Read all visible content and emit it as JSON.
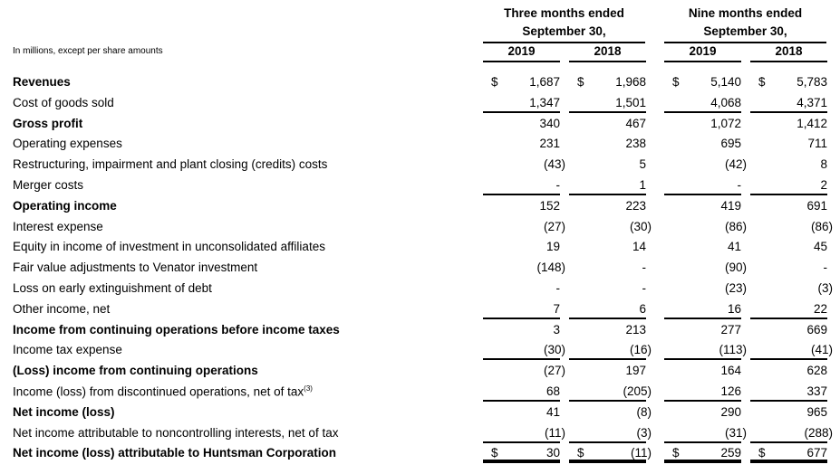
{
  "header": {
    "units_note": "In millions, except per share amounts",
    "groups": [
      {
        "title_line1": "Three months ended",
        "title_line2": "September 30,",
        "years": [
          "2019",
          "2018"
        ]
      },
      {
        "title_line1": "Nine months ended",
        "title_line2": "September 30,",
        "years": [
          "2019",
          "2018"
        ]
      }
    ]
  },
  "currency_symbol": "$",
  "rows": [
    {
      "label": "Revenues",
      "bold": true,
      "dollar": true,
      "values": [
        "1,687",
        "1,968",
        "5,140",
        "5,783"
      ],
      "rule": ""
    },
    {
      "label": "Cost of goods sold",
      "bold": false,
      "values": [
        "1,347",
        "1,501",
        "4,068",
        "4,371"
      ],
      "rule": "single"
    },
    {
      "label": "Gross profit",
      "bold": true,
      "values": [
        "340",
        "467",
        "1,072",
        "1,412"
      ],
      "rule": ""
    },
    {
      "label": "Operating expenses",
      "bold": false,
      "values": [
        "231",
        "238",
        "695",
        "711"
      ],
      "rule": ""
    },
    {
      "label": "Restructuring, impairment and plant closing (credits) costs",
      "bold": false,
      "values": [
        "(43)",
        "5",
        "(42)",
        "8"
      ],
      "rule": ""
    },
    {
      "label": "Merger costs",
      "bold": false,
      "values": [
        "-",
        "1",
        "-",
        "2"
      ],
      "rule": "single"
    },
    {
      "label": "Operating income",
      "bold": true,
      "values": [
        "152",
        "223",
        "419",
        "691"
      ],
      "rule": ""
    },
    {
      "label": "Interest expense",
      "bold": false,
      "values": [
        "(27)",
        "(30)",
        "(86)",
        "(86)"
      ],
      "rule": ""
    },
    {
      "label": "Equity in income of investment in unconsolidated affiliates",
      "bold": false,
      "values": [
        "19",
        "14",
        "41",
        "45"
      ],
      "rule": ""
    },
    {
      "label": "Fair value adjustments to Venator investment",
      "bold": false,
      "values": [
        "(148)",
        "-",
        "(90)",
        "-"
      ],
      "rule": ""
    },
    {
      "label": "Loss on early extinguishment of debt",
      "bold": false,
      "values": [
        "-",
        "-",
        "(23)",
        "(3)"
      ],
      "rule": ""
    },
    {
      "label": "Other income, net",
      "bold": false,
      "values": [
        "7",
        "6",
        "16",
        "22"
      ],
      "rule": "single"
    },
    {
      "label": "Income from continuing operations before income taxes",
      "bold": true,
      "values": [
        "3",
        "213",
        "277",
        "669"
      ],
      "rule": ""
    },
    {
      "label": "Income tax expense",
      "bold": false,
      "values": [
        "(30)",
        "(16)",
        "(113)",
        "(41)"
      ],
      "rule": "single"
    },
    {
      "label": "(Loss) income from continuing operations",
      "bold": true,
      "values": [
        "(27)",
        "197",
        "164",
        "628"
      ],
      "rule": ""
    },
    {
      "label": "Income (loss) from discontinued operations, net of tax",
      "footnote": "(3)",
      "bold": false,
      "values": [
        "68",
        "(205)",
        "126",
        "337"
      ],
      "rule": "single"
    },
    {
      "label": "Net income (loss)",
      "bold": true,
      "values": [
        "41",
        "(8)",
        "290",
        "965"
      ],
      "rule": ""
    },
    {
      "label": "Net income attributable to noncontrolling interests, net of tax",
      "bold": false,
      "values": [
        "(11)",
        "(3)",
        "(31)",
        "(288)"
      ],
      "rule": "single"
    },
    {
      "label": "Net income (loss) attributable to Huntsman Corporation",
      "bold": true,
      "dollar": true,
      "values": [
        "30",
        "(11)",
        "259",
        "677"
      ],
      "rule": "double"
    }
  ]
}
